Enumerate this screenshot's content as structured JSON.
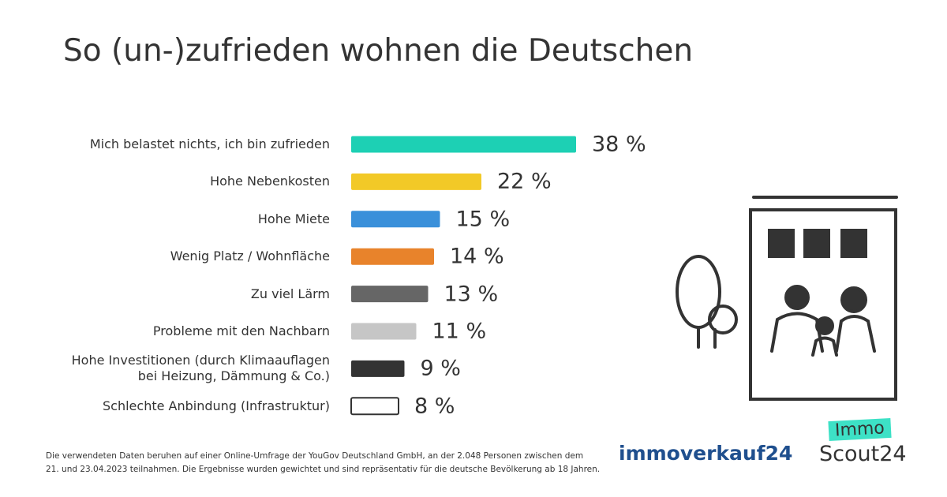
{
  "chart_data": {
    "type": "bar",
    "title": "So (un-)zufrieden wohnen die Deutschen",
    "categories": [
      "Mich belastet nichts, ich bin zufrieden",
      "Hohe Nebenkosten",
      "Hohe Miete",
      "Wenig Platz / Wohnfläche",
      "Zu viel Lärm",
      "Probleme mit den Nachbarn",
      "Hohe Investitionen (durch Klimaauflagen\nbei Heizung, Dämmung & Co.)",
      "Schlechte Anbindung (Infrastruktur)"
    ],
    "values": [
      38,
      22,
      15,
      14,
      13,
      11,
      9,
      8
    ],
    "value_labels": [
      "38 %",
      "22 %",
      "15 %",
      "14 %",
      "13 %",
      "11 %",
      "9 %",
      "8 %"
    ],
    "colors": [
      "#1dd0b4",
      "#f2c927",
      "#3a90da",
      "#e8832b",
      "#666666",
      "#c6c6c6",
      "#333333",
      "#ffffff"
    ],
    "note": "Die verwendeten Daten beruhen auf einer Online-Umfrage der YouGov Deutschland GmbH, an der 2.048 Personen zwischen dem\n21. und 23.04.2023 teilnahmen. Die Ergebnisse wurden gewichtet und sind repräsentativ für die deutsche Bevölkerung ab 18 Jahren.",
    "logos": {
      "immoverkauf": "immoverkauf24",
      "immo": "Immo",
      "scout": "Scout24"
    }
  }
}
